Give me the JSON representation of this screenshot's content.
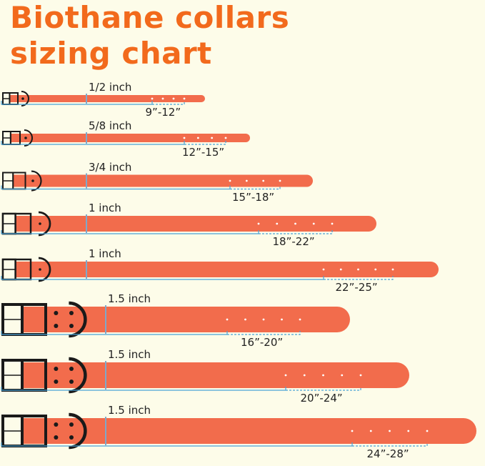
{
  "title_line1": "Biothane collars",
  "title_line2": "sizing chart",
  "colors": {
    "title": "#f26a1c",
    "collar": "#f26c4c",
    "hardware": "#1a1a1a",
    "measure_line": "#4aa3d6",
    "background": "#fdfce9"
  },
  "collars": [
    {
      "width": "1/2 inch",
      "range": "9”-12”"
    },
    {
      "width": "5/8 inch",
      "range": "12”-15”"
    },
    {
      "width": "3/4 inch",
      "range": "15”-18”"
    },
    {
      "width": "1 inch",
      "range": "18”-22”"
    },
    {
      "width": "1 inch",
      "range": "22”-25”"
    },
    {
      "width": "1.5 inch",
      "range": "16”-20”"
    },
    {
      "width": "1.5 inch",
      "range": "20”-24”"
    },
    {
      "width": "1.5 inch",
      "range": "24”-28”"
    }
  ]
}
